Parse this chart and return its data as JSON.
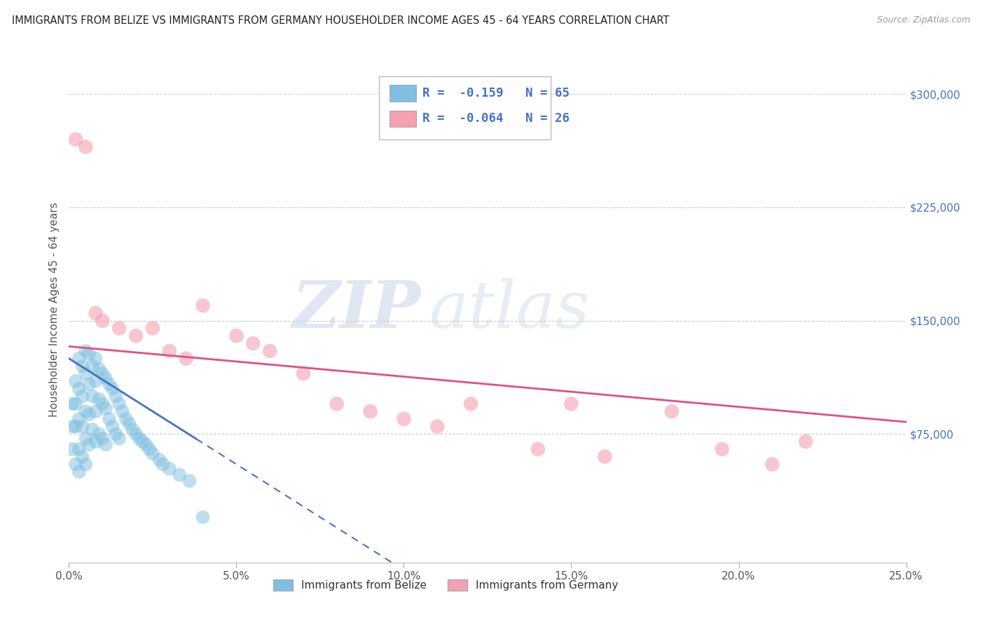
{
  "title": "IMMIGRANTS FROM BELIZE VS IMMIGRANTS FROM GERMANY HOUSEHOLDER INCOME AGES 45 - 64 YEARS CORRELATION CHART",
  "source": "Source: ZipAtlas.com",
  "ylabel": "Householder Income Ages 45 - 64 years",
  "xlim": [
    0.0,
    0.25
  ],
  "ylim": [
    -10000,
    325000
  ],
  "yticks": [
    0,
    75000,
    150000,
    225000,
    300000
  ],
  "ytick_labels": [
    "",
    "$75,000",
    "$150,000",
    "$225,000",
    "$300,000"
  ],
  "xticks": [
    0.0,
    0.05,
    0.1,
    0.15,
    0.2,
    0.25
  ],
  "xtick_labels": [
    "0.0%",
    "5.0%",
    "10.0%",
    "15.0%",
    "20.0%",
    "25.0%"
  ],
  "belize_color": "#7fbfdf",
  "germany_color": "#f4a0b0",
  "belize_R": -0.159,
  "belize_N": 65,
  "germany_R": -0.064,
  "germany_N": 26,
  "belize_scatter_x": [
    0.001,
    0.001,
    0.001,
    0.002,
    0.002,
    0.002,
    0.002,
    0.003,
    0.003,
    0.003,
    0.003,
    0.003,
    0.004,
    0.004,
    0.004,
    0.004,
    0.005,
    0.005,
    0.005,
    0.005,
    0.005,
    0.006,
    0.006,
    0.006,
    0.006,
    0.007,
    0.007,
    0.007,
    0.008,
    0.008,
    0.008,
    0.008,
    0.009,
    0.009,
    0.009,
    0.01,
    0.01,
    0.01,
    0.011,
    0.011,
    0.011,
    0.012,
    0.012,
    0.013,
    0.013,
    0.014,
    0.014,
    0.015,
    0.015,
    0.016,
    0.017,
    0.018,
    0.019,
    0.02,
    0.021,
    0.022,
    0.023,
    0.024,
    0.025,
    0.027,
    0.028,
    0.03,
    0.033,
    0.036,
    0.04
  ],
  "belize_scatter_y": [
    95000,
    80000,
    65000,
    110000,
    95000,
    80000,
    55000,
    125000,
    105000,
    85000,
    65000,
    50000,
    120000,
    100000,
    80000,
    60000,
    130000,
    115000,
    90000,
    72000,
    55000,
    128000,
    108000,
    88000,
    68000,
    120000,
    100000,
    78000,
    125000,
    110000,
    90000,
    70000,
    118000,
    98000,
    75000,
    115000,
    95000,
    72000,
    112000,
    92000,
    68000,
    108000,
    85000,
    105000,
    80000,
    100000,
    75000,
    95000,
    72000,
    90000,
    85000,
    82000,
    78000,
    75000,
    72000,
    70000,
    68000,
    65000,
    62000,
    58000,
    55000,
    52000,
    48000,
    44000,
    20000
  ],
  "germany_scatter_x": [
    0.002,
    0.005,
    0.008,
    0.01,
    0.015,
    0.02,
    0.025,
    0.03,
    0.035,
    0.04,
    0.05,
    0.055,
    0.06,
    0.07,
    0.08,
    0.09,
    0.1,
    0.11,
    0.12,
    0.14,
    0.15,
    0.16,
    0.18,
    0.195,
    0.21,
    0.22
  ],
  "germany_scatter_y": [
    270000,
    265000,
    155000,
    150000,
    145000,
    140000,
    145000,
    130000,
    125000,
    160000,
    140000,
    135000,
    130000,
    115000,
    95000,
    90000,
    85000,
    80000,
    95000,
    65000,
    95000,
    60000,
    90000,
    65000,
    55000,
    70000
  ],
  "watermark_zip": "ZIP",
  "watermark_atlas": "atlas",
  "title_color": "#222222",
  "source_color": "#999999",
  "axis_label_color": "#555555",
  "tick_color_y": "#4472c4",
  "tick_color_x": "#555555",
  "grid_color": "#cccccc",
  "legend_R_color": "#4472c4",
  "belize_line_color": "#4472c4",
  "germany_line_color": "#e05080",
  "background_color": "#ffffff",
  "belize_line_slope": -1400000,
  "belize_line_intercept": 125000,
  "germany_line_slope": -200000,
  "germany_line_intercept": 133000
}
